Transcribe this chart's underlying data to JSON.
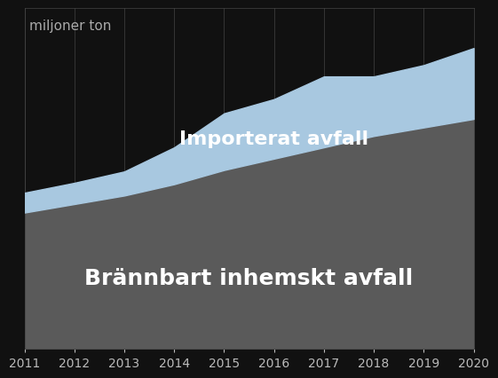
{
  "years": [
    2011,
    2012,
    2013,
    2014,
    2015,
    2016,
    2017,
    2018,
    2019,
    2020
  ],
  "domestic_waste": [
    4.8,
    5.1,
    5.4,
    5.8,
    6.3,
    6.7,
    7.1,
    7.5,
    7.8,
    8.1
  ],
  "imported_waste": [
    0.7,
    0.75,
    0.85,
    1.3,
    2.0,
    2.1,
    2.5,
    2.1,
    2.2,
    2.5
  ],
  "domestic_color": "#5a5a5a",
  "imported_color": "#a8c8e0",
  "background_color": "#111111",
  "plot_bg_color": "#111111",
  "grid_color": "#444444",
  "text_color": "#ffffff",
  "ylabel": "miljoner ton",
  "ylabel_color": "#aaaaaa",
  "label_domestic": "Brännbart inhemskt avfall",
  "label_imported": "Importerat avfall",
  "ylim": [
    0,
    12
  ],
  "xlabel_color": "#bbbbbb",
  "label_domestic_fontsize": 18,
  "label_imported_fontsize": 16,
  "ylabel_fontsize": 11,
  "tick_fontsize": 10
}
